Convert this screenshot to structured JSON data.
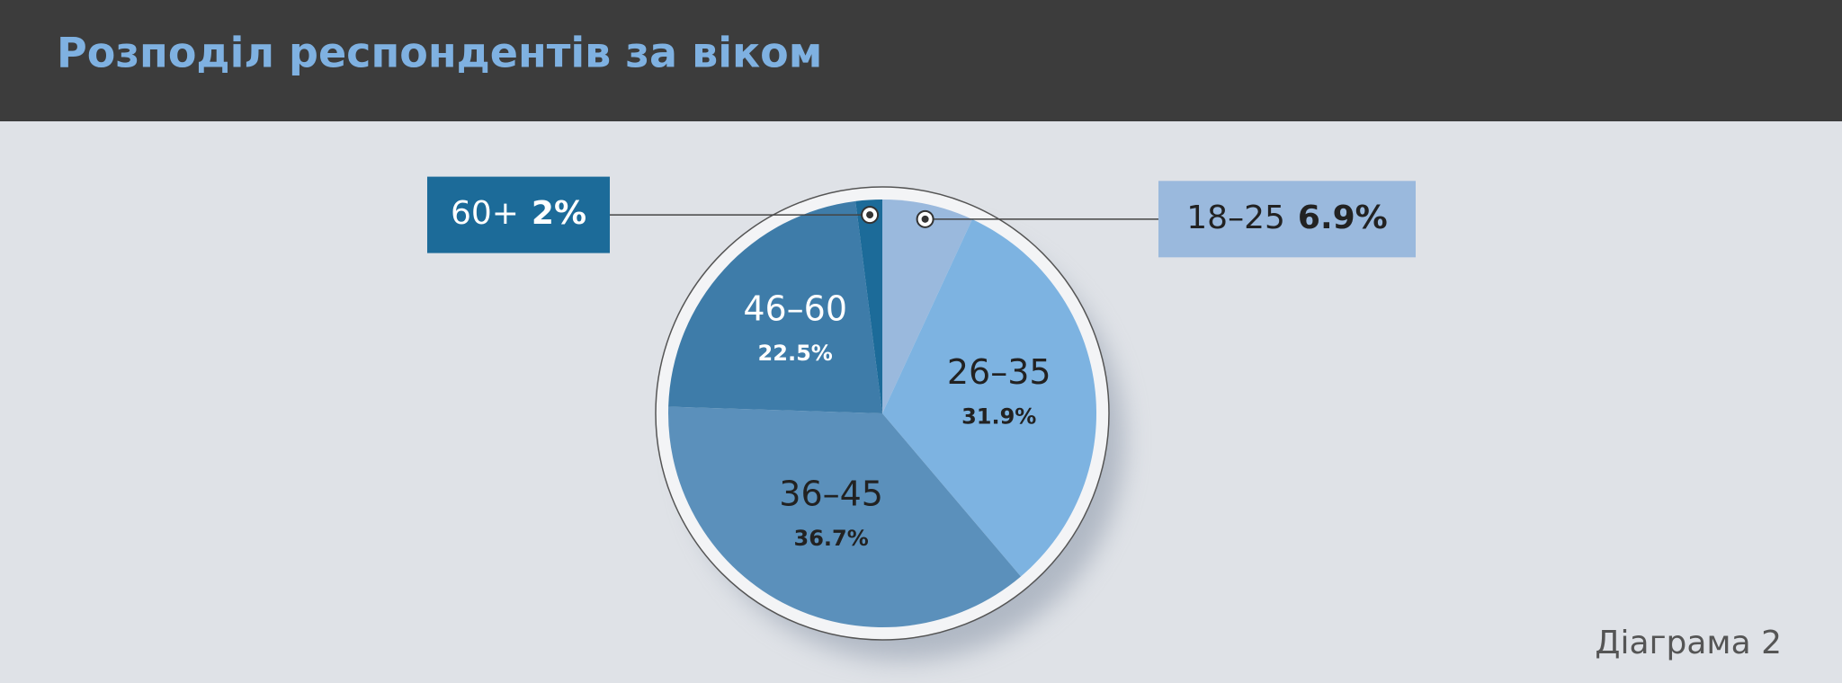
{
  "chart_data": {
    "type": "pie",
    "title": "Розподіл респондентів за віком",
    "categories": [
      "18–25",
      "26–35",
      "36–45",
      "46–60",
      "60+"
    ],
    "values": [
      6.9,
      31.9,
      36.7,
      22.5,
      2
    ],
    "value_labels": [
      "6.9%",
      "31.9%",
      "36.7%",
      "22.5%",
      "2%"
    ],
    "colors": [
      "#9ab9dd",
      "#7db3e1",
      "#5b90bb",
      "#3e7ca9",
      "#1c6b99"
    ],
    "footer": "Діаграма 2"
  }
}
